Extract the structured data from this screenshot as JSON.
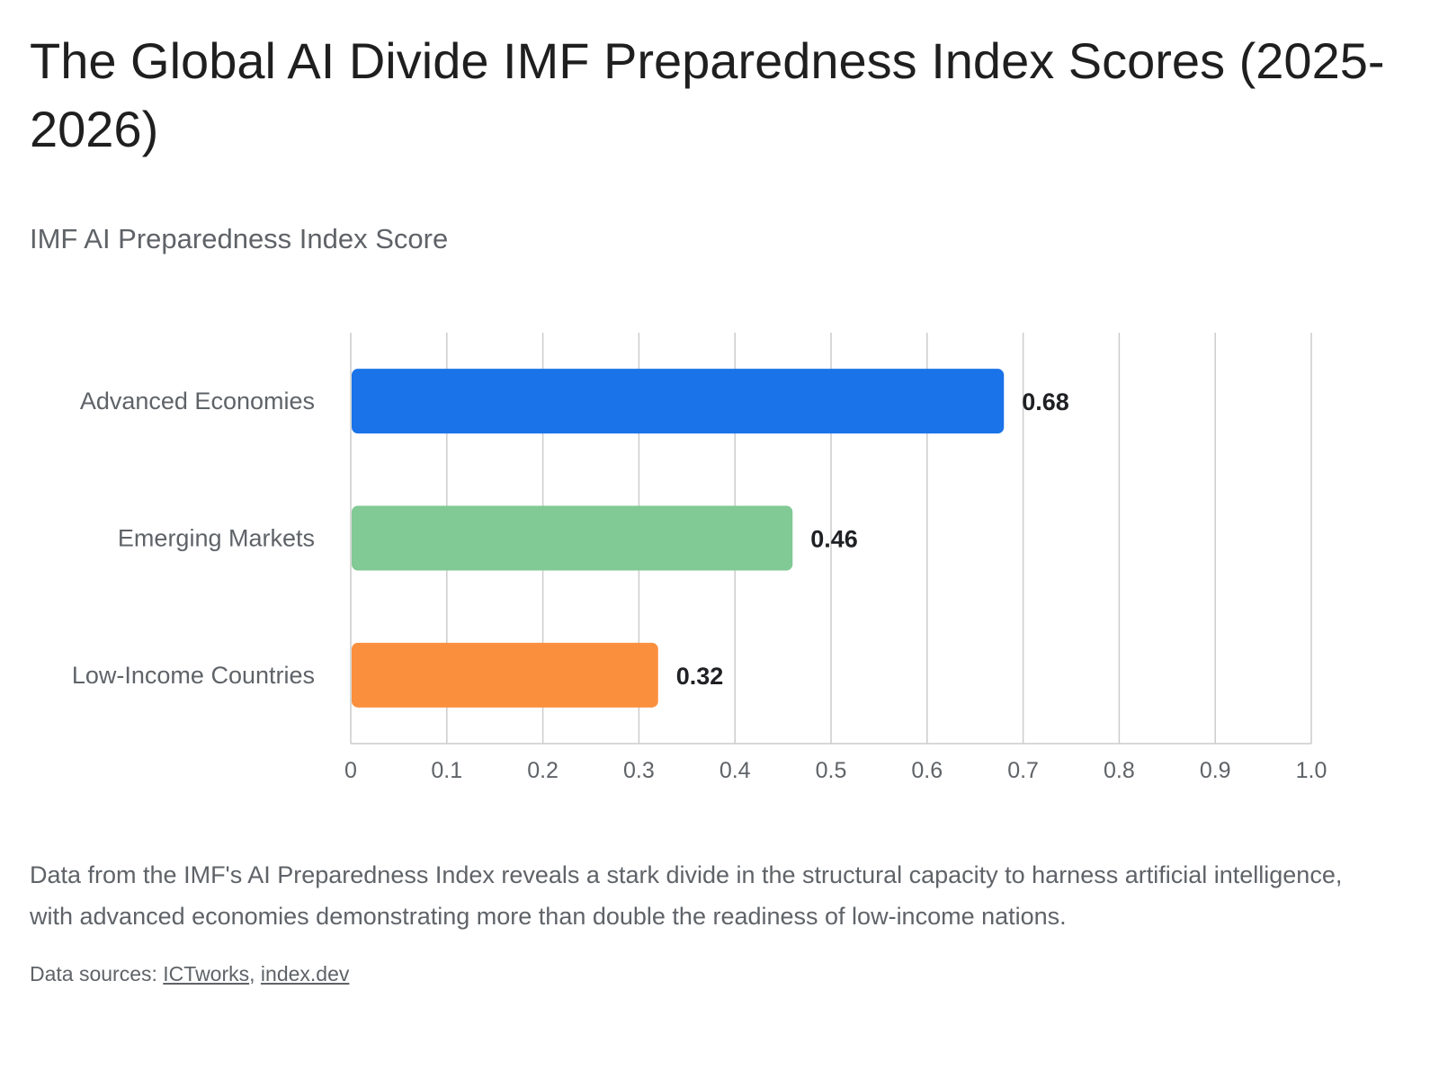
{
  "title": "The Global AI Divide IMF Preparedness Index Scores (2025-2026)",
  "subtitle": "IMF AI Preparedness Index Score",
  "description": "Data from the IMF's AI Preparedness Index reveals a stark divide in the structural capacity to harness artificial intelligence, with advanced economies demonstrating more than double the readiness of low-income nations.",
  "sources": {
    "label": "Data sources:",
    "links": [
      "ICTworks",
      "index.dev"
    ]
  },
  "chart_data": {
    "type": "bar",
    "orientation": "horizontal",
    "categories": [
      "Advanced Economies",
      "Emerging Markets",
      "Low-Income Countries"
    ],
    "values": [
      0.68,
      0.46,
      0.32
    ],
    "data_labels": [
      "0.68",
      "0.46",
      "0.32"
    ],
    "colors": [
      "#1a73e8",
      "#81c995",
      "#fa903e"
    ],
    "xlim": [
      0,
      1.0
    ],
    "x_ticks": [
      "0",
      "0.1",
      "0.2",
      "0.3",
      "0.4",
      "0.5",
      "0.6",
      "0.7",
      "0.8",
      "0.9",
      "1.0"
    ],
    "grid": true,
    "legend": "none"
  }
}
